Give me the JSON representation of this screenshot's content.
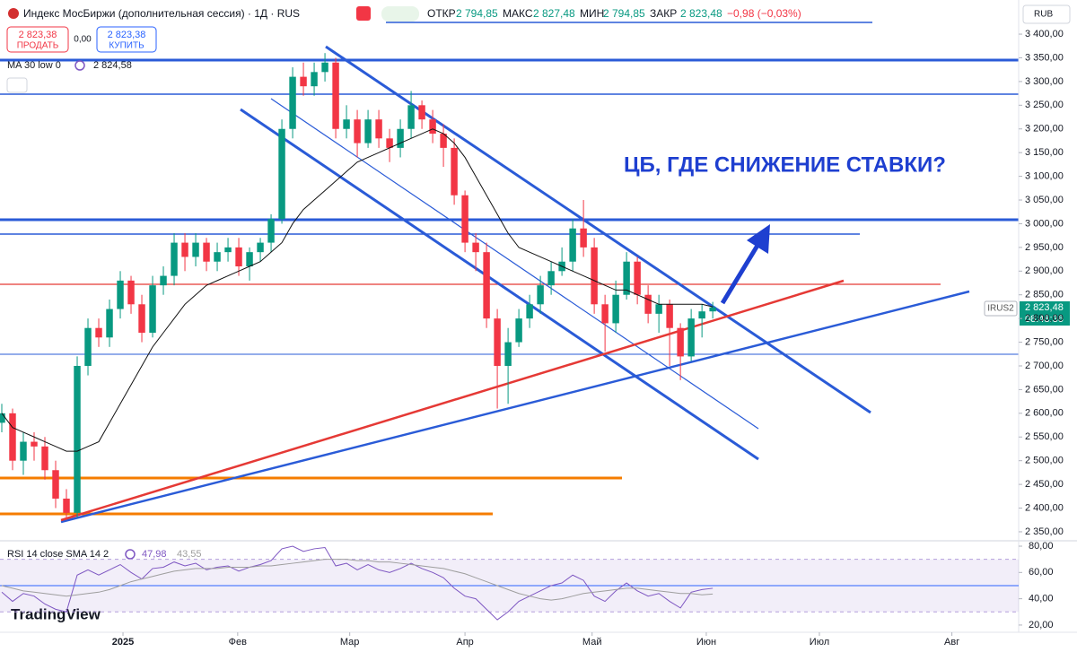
{
  "header": {
    "title": "Индекс МосБиржи (дополнительная сессия) · 1Д · RUS",
    "open_label": "ОТКР",
    "open": "2 794,85",
    "high_label": "МАКС",
    "high": "2 827,48",
    "low_label": "МИН",
    "low": "2 794,85",
    "close_label": "ЗАКР",
    "close": "2 823,48",
    "change": "−0,98 (−0,03%)",
    "sell_price": "2 823,38",
    "sell": "ПРОДАТЬ",
    "spread": "0,00",
    "buy_price": "2 823,38",
    "buy": "КУПИТЬ",
    "currency": "RUB",
    "logo": "TradingView"
  },
  "price_badge": {
    "symbol": "IRUS2",
    "price": "2 823,48",
    "timer": "08:48:36"
  },
  "chart_data": [
    {
      "type": "candlestick",
      "annotation": "ЦБ, ГДЕ СНИЖЕНИЕ СТАВКИ?",
      "x": [
        0,
        1,
        2,
        3,
        4,
        5,
        6,
        7,
        8,
        9,
        10,
        11,
        12,
        13,
        14,
        15,
        16,
        17,
        18,
        19,
        20,
        21,
        22,
        23,
        24,
        25,
        26,
        27,
        28,
        29,
        30,
        31,
        32,
        33,
        34,
        35,
        36,
        37,
        38,
        39,
        40,
        41,
        42,
        43,
        44,
        45,
        46,
        47,
        48,
        49,
        50,
        51,
        52,
        53,
        54,
        55,
        56,
        57,
        58,
        59,
        60,
        61,
        62,
        63,
        64,
        65,
        66
      ],
      "open": [
        2580,
        2600,
        2500,
        2540,
        2530,
        2480,
        2420,
        2390,
        2700,
        2780,
        2760,
        2820,
        2880,
        2830,
        2770,
        2870,
        2890,
        2960,
        2930,
        2960,
        2920,
        2940,
        2950,
        2910,
        2940,
        2960,
        3010,
        3200,
        3310,
        3290,
        3320,
        3340,
        3200,
        3220,
        3170,
        3220,
        3180,
        3160,
        3200,
        3250,
        3220,
        3190,
        3160,
        3060,
        2960,
        2940,
        2800,
        2700,
        2750,
        2800,
        2830,
        2870,
        2900,
        2920,
        2990,
        2950,
        2830,
        2790,
        2850,
        2920,
        2850,
        2810,
        2830,
        2780,
        2720,
        2800,
        2815
      ],
      "high": [
        2620,
        2610,
        2560,
        2560,
        2550,
        2500,
        2440,
        2720,
        2800,
        2800,
        2840,
        2900,
        2890,
        2850,
        2890,
        2910,
        2980,
        2980,
        2980,
        2970,
        2960,
        2970,
        2970,
        2950,
        2970,
        3020,
        3220,
        3330,
        3340,
        3340,
        3360,
        3350,
        3250,
        3240,
        3240,
        3240,
        3200,
        3220,
        3280,
        3260,
        3240,
        3210,
        3180,
        3070,
        2980,
        2960,
        2820,
        2780,
        2820,
        2850,
        2890,
        2920,
        2950,
        3010,
        3050,
        2970,
        2850,
        2880,
        2940,
        2930,
        2870,
        2850,
        2840,
        2790,
        2820,
        2830,
        2835
      ],
      "low": [
        2560,
        2480,
        2470,
        2500,
        2460,
        2400,
        2375,
        2380,
        2680,
        2740,
        2740,
        2800,
        2810,
        2750,
        2760,
        2850,
        2870,
        2900,
        2910,
        2900,
        2900,
        2920,
        2890,
        2880,
        2920,
        2940,
        3000,
        3180,
        3270,
        3270,
        3300,
        3180,
        3180,
        3140,
        3160,
        3160,
        3130,
        3140,
        3180,
        3200,
        3170,
        3120,
        3040,
        2940,
        2900,
        2780,
        2610,
        2620,
        2740,
        2780,
        2810,
        2850,
        2890,
        2900,
        2930,
        2810,
        2730,
        2770,
        2840,
        2830,
        2790,
        2770,
        2700,
        2670,
        2710,
        2760,
        2800
      ],
      "close": [
        2600,
        2500,
        2540,
        2530,
        2480,
        2420,
        2390,
        2700,
        2780,
        2760,
        2820,
        2880,
        2830,
        2770,
        2870,
        2890,
        2960,
        2930,
        2960,
        2920,
        2940,
        2950,
        2910,
        2940,
        2960,
        3010,
        3200,
        3310,
        3290,
        3320,
        3340,
        3200,
        3220,
        3170,
        3220,
        3180,
        3160,
        3200,
        3250,
        3220,
        3190,
        3160,
        3060,
        2960,
        2940,
        2800,
        2700,
        2750,
        2800,
        2830,
        2870,
        2900,
        2920,
        2990,
        2950,
        2830,
        2790,
        2850,
        2920,
        2850,
        2810,
        2830,
        2780,
        2720,
        2800,
        2815,
        2823.48
      ],
      "up_color": "#089981",
      "down_color": "#f23645",
      "series": [
        {
          "name": "MA 30 low 0",
          "color": "#111111",
          "last_label": "2 824,58",
          "values": [
            2600,
            2570,
            2560,
            2550,
            2540,
            2530,
            2520,
            2520,
            2530,
            2540,
            2580,
            2620,
            2660,
            2700,
            2740,
            2770,
            2800,
            2830,
            2850,
            2870,
            2880,
            2890,
            2900,
            2910,
            2920,
            2940,
            2960,
            3000,
            3030,
            3050,
            3070,
            3090,
            3110,
            3130,
            3140,
            3150,
            3160,
            3170,
            3180,
            3190,
            3200,
            3190,
            3170,
            3140,
            3100,
            3060,
            3020,
            2980,
            2950,
            2940,
            2930,
            2920,
            2910,
            2900,
            2890,
            2880,
            2870,
            2860,
            2860,
            2850,
            2840,
            2830,
            2830,
            2830,
            2830,
            2830,
            2824.58
          ]
        }
      ],
      "xlim": [
        0,
        94.4
      ],
      "ylim": [
        2331,
        3472
      ],
      "xticks": [
        {
          "value": 11.25,
          "label": "2025"
        },
        {
          "value": 21.9,
          "label": "Фев"
        },
        {
          "value": 32.3,
          "label": "Мар"
        },
        {
          "value": 43,
          "label": "Апр"
        },
        {
          "value": 54.8,
          "label": "Май"
        },
        {
          "value": 65.4,
          "label": "Июн"
        },
        {
          "value": 75.9,
          "label": "Июл"
        },
        {
          "value": 88.2,
          "label": "Авг"
        }
      ],
      "yticks": [
        {
          "value": 2350,
          "label": "2 350,00"
        },
        {
          "value": 2400,
          "label": "2 400,00"
        },
        {
          "value": 2450,
          "label": "2 450,00"
        },
        {
          "value": 2500,
          "label": "2 500,00"
        },
        {
          "value": 2550,
          "label": "2 550,00"
        },
        {
          "value": 2600,
          "label": "2 600,00"
        },
        {
          "value": 2650,
          "label": "2 650,00"
        },
        {
          "value": 2700,
          "label": "2 700,00"
        },
        {
          "value": 2750,
          "label": "2 750,00"
        },
        {
          "value": 2800,
          "label": "2 800,00"
        },
        {
          "value": 2850,
          "label": "2 850,00"
        },
        {
          "value": 2900,
          "label": "2 900,00"
        },
        {
          "value": 2950,
          "label": "2 950,00"
        },
        {
          "value": 3000,
          "label": "3 000,00"
        },
        {
          "value": 3050,
          "label": "3 050,00"
        },
        {
          "value": 3100,
          "label": "3 100,00"
        },
        {
          "value": 3150,
          "label": "3 150,00"
        },
        {
          "value": 3200,
          "label": "3 200,00"
        },
        {
          "value": 3250,
          "label": "3 250,00"
        },
        {
          "value": 3300,
          "label": "3 300,00"
        },
        {
          "value": 3350,
          "label": "3 350,00"
        },
        {
          "value": 3400,
          "label": "3 400,00"
        }
      ]
    },
    {
      "type": "line",
      "title": "RSI 14 close SMA 14 2",
      "x": [
        0,
        1,
        2,
        3,
        4,
        5,
        6,
        7,
        8,
        9,
        10,
        11,
        12,
        13,
        14,
        15,
        16,
        17,
        18,
        19,
        20,
        21,
        22,
        23,
        24,
        25,
        26,
        27,
        28,
        29,
        30,
        31,
        32,
        33,
        34,
        35,
        36,
        37,
        38,
        39,
        40,
        41,
        42,
        43,
        44,
        45,
        46,
        47,
        48,
        49,
        50,
        51,
        52,
        53,
        54,
        55,
        56,
        57,
        58,
        59,
        60,
        61,
        62,
        63,
        64,
        65,
        66
      ],
      "series": [
        {
          "name": "RSI",
          "color": "#7e57c2",
          "last_label": "47,98",
          "values": [
            45,
            38,
            44,
            42,
            36,
            32,
            30,
            58,
            62,
            58,
            62,
            66,
            60,
            55,
            63,
            64,
            68,
            65,
            67,
            62,
            64,
            65,
            61,
            64,
            66,
            69,
            78,
            80,
            76,
            78,
            79,
            65,
            67,
            62,
            66,
            62,
            60,
            63,
            67,
            63,
            60,
            56,
            48,
            42,
            40,
            32,
            24,
            30,
            38,
            42,
            46,
            50,
            52,
            58,
            54,
            42,
            38,
            46,
            52,
            46,
            42,
            44,
            38,
            33,
            45,
            47,
            47.98
          ]
        },
        {
          "name": "SMA",
          "color": "#9e9e9e",
          "last_label": "43,55",
          "values": [
            50,
            48,
            46,
            45,
            44,
            43,
            42,
            43,
            44,
            45,
            47,
            50,
            53,
            55,
            57,
            59,
            61,
            62,
            63,
            63,
            63,
            64,
            64,
            64,
            65,
            65,
            66,
            67,
            68,
            69,
            70,
            70,
            70,
            69,
            69,
            68,
            68,
            67,
            66,
            65,
            64,
            63,
            61,
            59,
            56,
            53,
            50,
            47,
            44,
            42,
            40,
            39,
            40,
            42,
            44,
            45,
            46,
            47,
            48,
            48,
            47,
            46,
            45,
            44,
            44,
            43,
            43.55
          ]
        }
      ],
      "bands": [
        30,
        70
      ],
      "midline": 50,
      "xlim": [
        0,
        94.4
      ],
      "ylim": [
        14.5,
        84.1
      ],
      "yticks": [
        {
          "value": 20,
          "label": "20,00"
        },
        {
          "value": 40,
          "label": "40,00"
        },
        {
          "value": 60,
          "label": "60,00"
        },
        {
          "value": 80,
          "label": "80,00"
        }
      ]
    }
  ]
}
